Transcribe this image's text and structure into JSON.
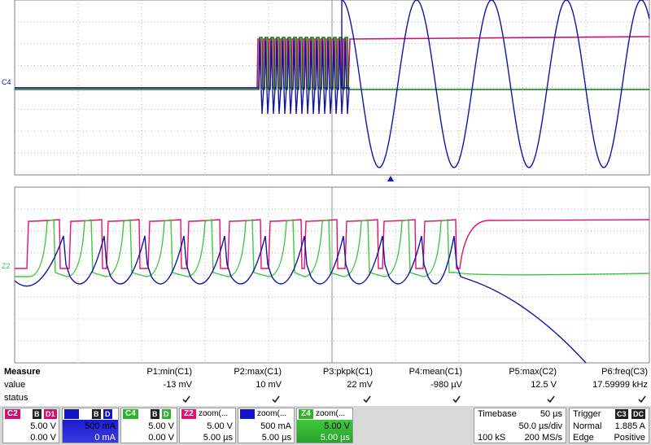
{
  "colors": {
    "c1": "#e8106e",
    "c2": "#1414a0",
    "c3": "#e8e8e8",
    "c4": "#3ec83e",
    "darkgreen": "#0e7a0e",
    "magenta": "#d0106a"
  },
  "markers": {
    "upper": "C4",
    "lower": "Z2"
  },
  "measure": {
    "header": "Measure",
    "row_value": "value",
    "row_status": "status",
    "params": [
      {
        "name": "P1:min(C1)",
        "value": "-13 mV"
      },
      {
        "name": "P2:max(C1)",
        "value": "10 mV"
      },
      {
        "name": "P3:pkpk(C1)",
        "value": "22 mV"
      },
      {
        "name": "P4:mean(C1)",
        "value": "-980 µV"
      },
      {
        "name": "P5:max(C2)",
        "value": "12.5 V"
      },
      {
        "name": "P6:freq(C3)",
        "value": "17.59999 kHz"
      }
    ]
  },
  "channels": [
    {
      "label": "C2",
      "tags": [
        "B",
        "D1"
      ],
      "v1": "5.00 V",
      "v2": "0.00 V"
    },
    {
      "label": "",
      "tags": [
        "B",
        "D"
      ],
      "v1": "500 mA",
      "v2": "0 mA"
    },
    {
      "label": "C4",
      "tags": [
        "B",
        "D"
      ],
      "v1": "5.00 V",
      "v2": "0.00 V"
    },
    {
      "label": "Z2",
      "zoom": "zoom(...",
      "v1": "5.00 V",
      "v2": "5.00 µs"
    },
    {
      "label": "",
      "zoom": "zoom(...",
      "v1": "500 mA",
      "v2": "5.00 µs"
    },
    {
      "label": "Z4",
      "zoom": "zoom(...",
      "v1": "5.00 V",
      "v2": "5.00 µs"
    }
  ],
  "timebase": {
    "title": "Timebase",
    "value": "50 µs",
    "per_div": "50.0 µs/div",
    "samples": "100 kS",
    "rate": "200 MS/s"
  },
  "trigger": {
    "title": "Trigger",
    "tags": [
      "C3",
      "DC"
    ],
    "mode": "Normal",
    "level": "1.885 A",
    "type": "Edge",
    "slope": "Positive"
  }
}
